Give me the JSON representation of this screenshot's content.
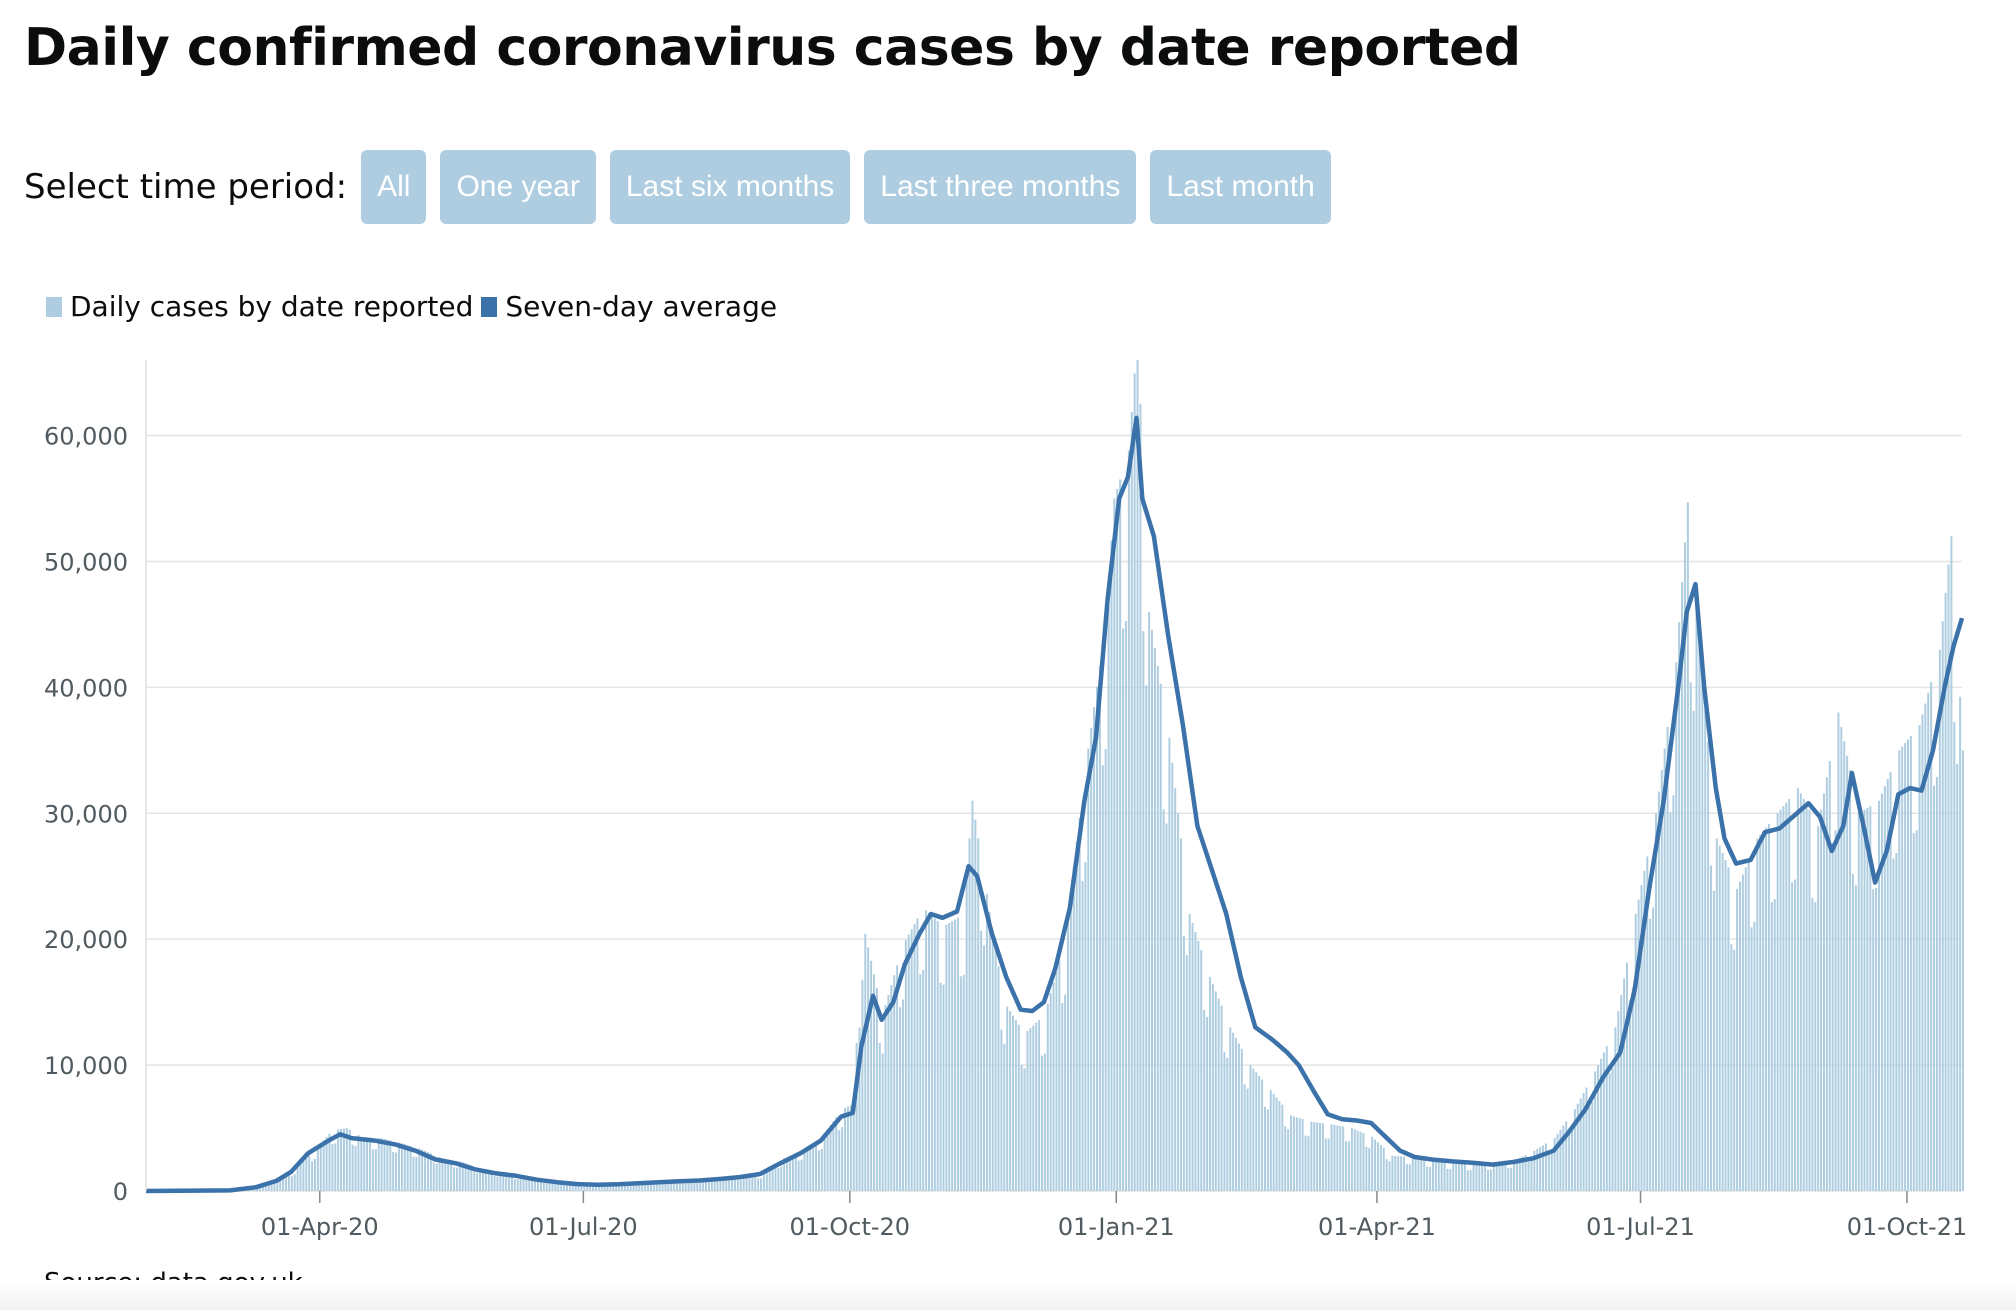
{
  "header": {
    "title": "Daily confirmed coronavirus cases by date reported"
  },
  "period_selector": {
    "label": "Select time period:",
    "options": [
      "All",
      "One year",
      "Last six months",
      "Last three months",
      "Last month"
    ]
  },
  "legend": {
    "bars_label": "Daily cases by date reported",
    "line_label": "Seven-day average"
  },
  "source": {
    "prefix": "Source: ",
    "link_text": "data.gov.uk"
  },
  "colors": {
    "bars": "#aecde0",
    "line": "#3b72aa",
    "grid": "#e4e4e4",
    "axis_text": "#505a5f",
    "button": "#aecde0"
  },
  "chart_data": {
    "type": "bar",
    "title": "Daily confirmed coronavirus cases by date reported",
    "xlabel": "",
    "ylabel": "",
    "x_type": "date",
    "x_range": [
      "2020-02-01",
      "2021-10-20"
    ],
    "ylim": [
      0,
      66000
    ],
    "y_ticks": [
      0,
      10000,
      20000,
      30000,
      40000,
      50000,
      60000
    ],
    "y_tick_labels": [
      "0",
      "10,000",
      "20,000",
      "30,000",
      "40,000",
      "50,000",
      "60,000"
    ],
    "x_ticks": [
      "2020-04-01",
      "2020-07-01",
      "2020-10-01",
      "2021-01-01",
      "2021-04-01",
      "2021-07-01",
      "2021-10-01"
    ],
    "x_tick_labels": [
      "01-Apr-20",
      "01-Jul-20",
      "01-Oct-20",
      "01-Jan-21",
      "01-Apr-21",
      "01-Jul-21",
      "01-Oct-21"
    ],
    "grid": "horizontal",
    "legend_position": "top-left",
    "series": [
      {
        "name": "Daily cases by date reported",
        "type": "bar",
        "points": [
          [
            "2020-02-01",
            0
          ],
          [
            "2020-03-01",
            40
          ],
          [
            "2020-03-08",
            200
          ],
          [
            "2020-03-15",
            900
          ],
          [
            "2020-03-22",
            1500
          ],
          [
            "2020-03-29",
            3000
          ],
          [
            "2020-04-05",
            4800
          ],
          [
            "2020-04-10",
            5000
          ],
          [
            "2020-04-15",
            4300
          ],
          [
            "2020-04-22",
            4200
          ],
          [
            "2020-04-29",
            3800
          ],
          [
            "2020-05-06",
            3300
          ],
          [
            "2020-05-13",
            2600
          ],
          [
            "2020-05-20",
            2300
          ],
          [
            "2020-05-27",
            1700
          ],
          [
            "2020-06-03",
            1400
          ],
          [
            "2020-06-10",
            1100
          ],
          [
            "2020-06-17",
            900
          ],
          [
            "2020-06-24",
            700
          ],
          [
            "2020-07-01",
            500
          ],
          [
            "2020-07-10",
            550
          ],
          [
            "2020-07-20",
            650
          ],
          [
            "2020-07-31",
            760
          ],
          [
            "2020-08-10",
            850
          ],
          [
            "2020-08-20",
            1050
          ],
          [
            "2020-08-31",
            1300
          ],
          [
            "2020-09-07",
            2500
          ],
          [
            "2020-09-14",
            3200
          ],
          [
            "2020-09-21",
            4300
          ],
          [
            "2020-09-28",
            6500
          ],
          [
            "2020-10-02",
            6900
          ],
          [
            "2020-10-05",
            21500
          ],
          [
            "2020-10-12",
            14000
          ],
          [
            "2020-10-19",
            19500
          ],
          [
            "2020-10-26",
            22500
          ],
          [
            "2020-11-02",
            21000
          ],
          [
            "2020-11-09",
            22000
          ],
          [
            "2020-11-12",
            31000
          ],
          [
            "2020-11-16",
            25000
          ],
          [
            "2020-11-23",
            15000
          ],
          [
            "2020-11-30",
            12500
          ],
          [
            "2020-12-07",
            14000
          ],
          [
            "2020-12-14",
            20000
          ],
          [
            "2020-12-21",
            33500
          ],
          [
            "2020-12-28",
            45000
          ],
          [
            "2020-12-31",
            55000
          ],
          [
            "2021-01-05",
            58800
          ],
          [
            "2021-01-08",
            68000
          ],
          [
            "2021-01-12",
            46000
          ],
          [
            "2021-01-19",
            36000
          ],
          [
            "2021-01-26",
            22000
          ],
          [
            "2021-02-02",
            17000
          ],
          [
            "2021-02-09",
            13000
          ],
          [
            "2021-02-16",
            10000
          ],
          [
            "2021-02-23",
            8000
          ],
          [
            "2021-03-02",
            6000
          ],
          [
            "2021-03-09",
            5500
          ],
          [
            "2021-03-16",
            5300
          ],
          [
            "2021-03-23",
            5000
          ],
          [
            "2021-03-30",
            4300
          ],
          [
            "2021-04-06",
            2800
          ],
          [
            "2021-04-13",
            2700
          ],
          [
            "2021-04-20",
            2400
          ],
          [
            "2021-04-27",
            2200
          ],
          [
            "2021-05-04",
            2100
          ],
          [
            "2021-05-11",
            2200
          ],
          [
            "2021-05-18",
            2400
          ],
          [
            "2021-05-25",
            3200
          ],
          [
            "2021-06-01",
            4200
          ],
          [
            "2021-06-08",
            6500
          ],
          [
            "2021-06-15",
            9500
          ],
          [
            "2021-06-22",
            13000
          ],
          [
            "2021-06-29",
            22000
          ],
          [
            "2021-07-06",
            30000
          ],
          [
            "2021-07-13",
            42000
          ],
          [
            "2021-07-17",
            54700
          ],
          [
            "2021-07-20",
            46000
          ],
          [
            "2021-07-27",
            28000
          ],
          [
            "2021-08-03",
            24000
          ],
          [
            "2021-08-10",
            28000
          ],
          [
            "2021-08-17",
            30000
          ],
          [
            "2021-08-24",
            32000
          ],
          [
            "2021-08-31",
            29000
          ],
          [
            "2021-09-07",
            38000
          ],
          [
            "2021-09-14",
            30000
          ],
          [
            "2021-09-21",
            31000
          ],
          [
            "2021-09-28",
            35000
          ],
          [
            "2021-10-05",
            37000
          ],
          [
            "2021-10-12",
            43000
          ],
          [
            "2021-10-16",
            52000
          ],
          [
            "2021-10-20",
            35000
          ]
        ]
      },
      {
        "name": "Seven-day average",
        "type": "line",
        "points": [
          [
            "2020-02-01",
            0
          ],
          [
            "2020-03-01",
            50
          ],
          [
            "2020-03-10",
            300
          ],
          [
            "2020-03-17",
            800
          ],
          [
            "2020-03-22",
            1500
          ],
          [
            "2020-03-28",
            3000
          ],
          [
            "2020-04-04",
            4000
          ],
          [
            "2020-04-08",
            4500
          ],
          [
            "2020-04-12",
            4200
          ],
          [
            "2020-04-20",
            4000
          ],
          [
            "2020-04-27",
            3700
          ],
          [
            "2020-05-04",
            3200
          ],
          [
            "2020-05-11",
            2500
          ],
          [
            "2020-05-18",
            2200
          ],
          [
            "2020-05-25",
            1700
          ],
          [
            "2020-06-01",
            1400
          ],
          [
            "2020-06-08",
            1200
          ],
          [
            "2020-06-15",
            900
          ],
          [
            "2020-06-22",
            700
          ],
          [
            "2020-06-29",
            550
          ],
          [
            "2020-07-06",
            500
          ],
          [
            "2020-07-13",
            530
          ],
          [
            "2020-07-20",
            620
          ],
          [
            "2020-07-27",
            700
          ],
          [
            "2020-08-03",
            780
          ],
          [
            "2020-08-10",
            830
          ],
          [
            "2020-08-17",
            950
          ],
          [
            "2020-08-24",
            1100
          ],
          [
            "2020-08-31",
            1350
          ],
          [
            "2020-09-07",
            2200
          ],
          [
            "2020-09-14",
            3000
          ],
          [
            "2020-09-21",
            4000
          ],
          [
            "2020-09-28",
            5900
          ],
          [
            "2020-10-02",
            6200
          ],
          [
            "2020-10-05",
            11500
          ],
          [
            "2020-10-09",
            15500
          ],
          [
            "2020-10-12",
            13600
          ],
          [
            "2020-10-16",
            15000
          ],
          [
            "2020-10-20",
            18000
          ],
          [
            "2020-10-25",
            20400
          ],
          [
            "2020-10-29",
            22000
          ],
          [
            "2020-11-02",
            21700
          ],
          [
            "2020-11-07",
            22200
          ],
          [
            "2020-11-11",
            25800
          ],
          [
            "2020-11-14",
            25000
          ],
          [
            "2020-11-19",
            20500
          ],
          [
            "2020-11-24",
            17000
          ],
          [
            "2020-11-29",
            14400
          ],
          [
            "2020-12-03",
            14300
          ],
          [
            "2020-12-07",
            15000
          ],
          [
            "2020-12-11",
            17700
          ],
          [
            "2020-12-16",
            22500
          ],
          [
            "2020-12-21",
            31000
          ],
          [
            "2020-12-25",
            36000
          ],
          [
            "2020-12-29",
            47000
          ],
          [
            "2021-01-02",
            55000
          ],
          [
            "2021-01-05",
            56700
          ],
          [
            "2021-01-08",
            61400
          ],
          [
            "2021-01-10",
            55000
          ],
          [
            "2021-01-14",
            52000
          ],
          [
            "2021-01-19",
            44000
          ],
          [
            "2021-01-24",
            37000
          ],
          [
            "2021-01-29",
            29000
          ],
          [
            "2021-02-03",
            25500
          ],
          [
            "2021-02-08",
            22000
          ],
          [
            "2021-02-13",
            17000
          ],
          [
            "2021-02-18",
            13000
          ],
          [
            "2021-02-24",
            12000
          ],
          [
            "2021-03-01",
            11000
          ],
          [
            "2021-03-05",
            10000
          ],
          [
            "2021-03-10",
            8000
          ],
          [
            "2021-03-15",
            6100
          ],
          [
            "2021-03-20",
            5700
          ],
          [
            "2021-03-25",
            5600
          ],
          [
            "2021-03-30",
            5400
          ],
          [
            "2021-04-04",
            4300
          ],
          [
            "2021-04-09",
            3200
          ],
          [
            "2021-04-14",
            2700
          ],
          [
            "2021-04-20",
            2500
          ],
          [
            "2021-04-27",
            2350
          ],
          [
            "2021-05-04",
            2250
          ],
          [
            "2021-05-11",
            2100
          ],
          [
            "2021-05-18",
            2300
          ],
          [
            "2021-05-25",
            2600
          ],
          [
            "2021-06-01",
            3200
          ],
          [
            "2021-06-06",
            4600
          ],
          [
            "2021-06-12",
            6500
          ],
          [
            "2021-06-18",
            9000
          ],
          [
            "2021-06-24",
            11000
          ],
          [
            "2021-06-29",
            16000
          ],
          [
            "2021-07-04",
            24000
          ],
          [
            "2021-07-09",
            31000
          ],
          [
            "2021-07-14",
            40000
          ],
          [
            "2021-07-17",
            46000
          ],
          [
            "2021-07-20",
            48200
          ],
          [
            "2021-07-23",
            40000
          ],
          [
            "2021-07-27",
            32000
          ],
          [
            "2021-07-30",
            28000
          ],
          [
            "2021-08-03",
            26000
          ],
          [
            "2021-08-08",
            26300
          ],
          [
            "2021-08-13",
            28500
          ],
          [
            "2021-08-18",
            28800
          ],
          [
            "2021-08-24",
            30000
          ],
          [
            "2021-08-28",
            30800
          ],
          [
            "2021-09-01",
            29700
          ],
          [
            "2021-09-05",
            27000
          ],
          [
            "2021-09-09",
            29000
          ],
          [
            "2021-09-12",
            33200
          ],
          [
            "2021-09-16",
            29000
          ],
          [
            "2021-09-20",
            24500
          ],
          [
            "2021-09-24",
            27000
          ],
          [
            "2021-09-28",
            31500
          ],
          [
            "2021-10-02",
            32000
          ],
          [
            "2021-10-06",
            31800
          ],
          [
            "2021-10-10",
            35000
          ],
          [
            "2021-10-14",
            40000
          ],
          [
            "2021-10-17",
            43200
          ],
          [
            "2021-10-20",
            45500
          ]
        ]
      }
    ]
  }
}
